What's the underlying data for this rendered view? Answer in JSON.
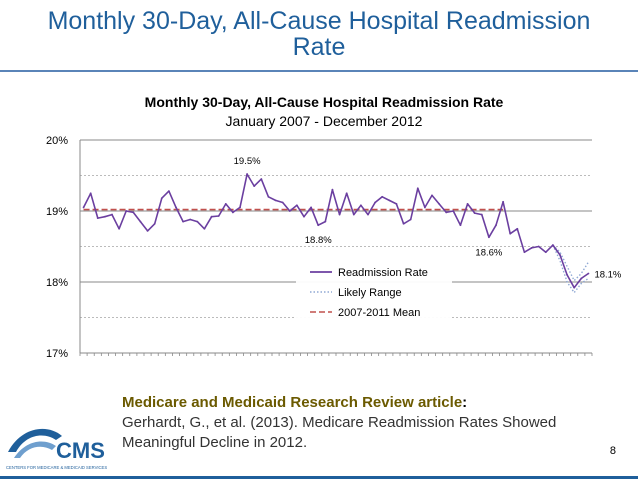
{
  "slide": {
    "title_line1": "Monthly 30-Day, All-Cause Hospital Readmission",
    "title_line2": "Rate",
    "page_number": "8"
  },
  "citation": {
    "source": "Medicare and Medicaid Research Review",
    "article_word": " article",
    "colon": ":",
    "line2": "Gerhardt, G., et al. (2013). Medicare Readmission Rates Showed",
    "line3": "Meaningful Decline in 2012."
  },
  "logo": {
    "text": "CMS",
    "subtext": "CENTERS FOR MEDICARE & MEDICAID SERVICES"
  },
  "colors": {
    "title": "#1f5f9b",
    "series": "#6b3fa0",
    "likely": "#8fa8d4",
    "mean": "#c0504d"
  },
  "chart_data": {
    "type": "line",
    "title": "Monthly 30-Day, All-Cause Hospital Readmission Rate",
    "subtitle": "January 2007 - December 2012",
    "x_range": [
      "Jan 2007",
      "Dec 2012"
    ],
    "ylim": [
      17,
      20
    ],
    "y_ticks": [
      {
        "value": 17,
        "label": "17%"
      },
      {
        "value": 18,
        "label": "18%"
      },
      {
        "value": 19,
        "label": "19%"
      },
      {
        "value": 20,
        "label": "20%"
      }
    ],
    "grid": true,
    "legend_position": "bottom-right",
    "series": [
      {
        "name": "Readmission Rate",
        "style": "solid",
        "values": [
          19.05,
          19.25,
          18.9,
          18.92,
          18.95,
          18.75,
          19.0,
          18.98,
          18.85,
          18.72,
          18.82,
          19.18,
          19.28,
          19.05,
          18.85,
          18.88,
          18.85,
          18.75,
          18.92,
          18.93,
          19.1,
          18.98,
          19.05,
          19.52,
          19.35,
          19.45,
          19.2,
          19.15,
          19.12,
          19.0,
          19.08,
          18.92,
          19.05,
          18.8,
          18.85,
          19.3,
          18.95,
          19.25,
          18.95,
          19.08,
          18.95,
          19.12,
          19.2,
          19.15,
          19.1,
          18.82,
          18.88,
          19.32,
          19.05,
          19.22,
          19.1,
          18.98,
          19.0,
          18.8,
          19.1,
          18.97,
          18.95,
          18.63,
          18.8,
          19.13,
          18.68,
          18.75,
          18.42,
          18.48,
          18.5,
          18.42,
          18.52,
          18.38,
          18.1,
          17.92,
          18.05,
          18.12
        ]
      },
      {
        "name": "Likely Range",
        "style": "dotted",
        "start_index": 66,
        "upper": [
          18.52,
          18.42,
          18.22,
          18.02,
          18.12,
          18.28
        ],
        "lower": [
          18.52,
          18.3,
          18.0,
          17.85,
          17.98,
          18.05
        ]
      },
      {
        "name": "2007-2011 Mean",
        "style": "dashed",
        "constant": 19.02,
        "start_index": 0,
        "end_index": 59
      }
    ],
    "annotations": [
      {
        "text": "19.5%",
        "index": 23,
        "value": 19.52,
        "position": "above"
      },
      {
        "text": "18.8%",
        "index": 33,
        "value": 18.8,
        "position": "below"
      },
      {
        "text": "18.6%",
        "index": 57,
        "value": 18.63,
        "position": "below"
      },
      {
        "text": "18.1%",
        "index": 71,
        "value": 18.12,
        "position": "right"
      }
    ]
  }
}
